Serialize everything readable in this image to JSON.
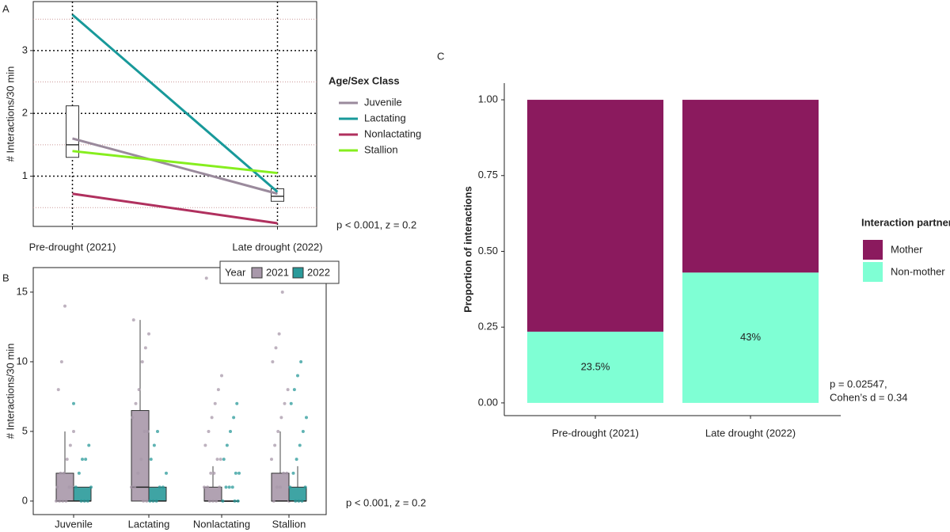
{
  "chart_data": [
    {
      "type": "line",
      "panel_label": "A",
      "y_label": "# Interactions/30 min",
      "categories": [
        "Pre-drought (2021)",
        "Late drought (2022)"
      ],
      "series": [
        {
          "name": "Juvenile",
          "color": "#9a8a9c",
          "values": [
            1.6,
            0.72
          ]
        },
        {
          "name": "Lactating",
          "color": "#18999a",
          "values": [
            3.57,
            0.75
          ]
        },
        {
          "name": "Nonlactating",
          "color": "#b0305e",
          "values": [
            0.72,
            0.25
          ]
        },
        {
          "name": "Stallion",
          "color": "#86ee1e",
          "values": [
            1.4,
            1.05
          ]
        }
      ],
      "boxes": [
        {
          "q1": 1.3,
          "median": 1.5,
          "q3": 2.12
        },
        {
          "q1": 0.6,
          "median": 0.68,
          "q3": 0.8
        }
      ],
      "ylim": [
        0.2,
        3.78
      ],
      "yticks": [
        1,
        2,
        3
      ],
      "minor_yticks": [
        0.5,
        1.5,
        2.5,
        3.5
      ],
      "grid": true,
      "legend_title": "Age/Sex Class",
      "annotation": "p < 0.001, z = 0.2"
    },
    {
      "type": "box",
      "panel_label": "B",
      "y_label": "# Interactions/30 min",
      "categories": [
        "Juvenile",
        "Lactating",
        "Nonlactating",
        "Stallion"
      ],
      "legend_title": "Year",
      "series": [
        {
          "name": "2021",
          "color": "#a898aa",
          "boxes": [
            {
              "min": 0,
              "q1": 0,
              "median": 0,
              "q3": 2,
              "max": 5
            },
            {
              "min": 0,
              "q1": 0,
              "median": 1,
              "q3": 6.5,
              "max": 13
            },
            {
              "min": 0,
              "q1": 0,
              "median": 0,
              "q3": 1,
              "max": 2.5
            },
            {
              "min": 0,
              "q1": 0,
              "median": 0,
              "q3": 2,
              "max": 5
            }
          ],
          "points": [
            [
              0,
              0,
              0,
              0,
              1,
              1,
              1,
              2,
              2,
              3,
              4,
              5,
              8,
              10,
              14
            ],
            [
              0,
              0,
              1,
              1,
              2,
              3,
              5,
              5,
              6,
              7,
              8,
              10,
              11,
              12,
              13
            ],
            [
              0,
              0,
              0,
              1,
              1,
              1,
              2,
              2,
              3,
              3,
              4,
              5,
              6,
              7,
              8,
              9,
              16
            ],
            [
              0,
              0,
              1,
              1,
              2,
              2,
              3,
              4,
              5,
              6,
              7,
              8,
              10,
              11,
              12,
              15
            ]
          ]
        },
        {
          "name": "2022",
          "color": "#2a9a9a",
          "boxes": [
            {
              "min": 0,
              "q1": 0,
              "median": 0,
              "q3": 1,
              "max": 1
            },
            {
              "min": 0,
              "q1": 0,
              "median": 0,
              "q3": 1,
              "max": 1
            },
            {
              "min": 0,
              "q1": 0,
              "median": 0,
              "q3": 0,
              "max": 0
            },
            {
              "min": 0,
              "q1": 0,
              "median": 0,
              "q3": 1,
              "max": 2.5
            }
          ],
          "points": [
            [
              0,
              0,
              0,
              1,
              1,
              2,
              3,
              3,
              4,
              7
            ],
            [
              0,
              0,
              0,
              1,
              1,
              2,
              3,
              4,
              5
            ],
            [
              0,
              0,
              0,
              1,
              1,
              1,
              2,
              2,
              3,
              4,
              5,
              6,
              7
            ],
            [
              0,
              0,
              0,
              1,
              1,
              2,
              3,
              4,
              5,
              6,
              7,
              8,
              9,
              10
            ]
          ]
        }
      ],
      "ylim": [
        -0.97,
        16.76
      ],
      "yticks": [
        0,
        5,
        10,
        15
      ],
      "annotation": "p < 0.001, z = 0.2"
    },
    {
      "type": "stacked_bar",
      "panel_label": "C",
      "y_label": "Proportion of interactions",
      "categories": [
        "Pre-drought (2021)",
        "Late drought (2022)"
      ],
      "legend_title": "Interaction partner",
      "series": [
        {
          "name": "Mother",
          "color": "#8b1a5e",
          "values": [
            0.765,
            0.57
          ]
        },
        {
          "name": "Non-mother",
          "color": "#7fffd4",
          "values": [
            0.235,
            0.43
          ],
          "value_labels": [
            "23.5%",
            "43%"
          ]
        }
      ],
      "ylim": [
        -0.042,
        1.055
      ],
      "yticks": [
        {
          "value": 0,
          "label": "0.00"
        },
        {
          "value": 0.25,
          "label": "0.25"
        },
        {
          "value": 0.5,
          "label": "0.50"
        },
        {
          "value": 0.75,
          "label": "0.75"
        },
        {
          "value": 1,
          "label": "1.00"
        }
      ],
      "annotation": [
        "p = 0.02547,",
        "Cohen’s d = 0.34"
      ]
    }
  ]
}
